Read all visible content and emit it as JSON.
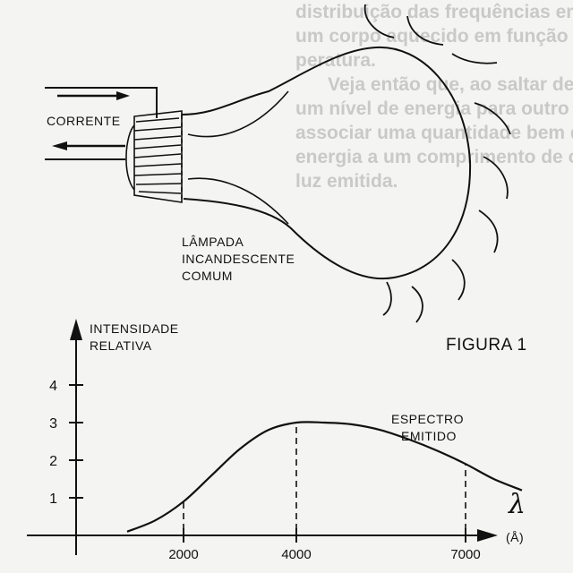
{
  "background_text": [
    "distribuição das frequências emitidas por",
    "um corpo aquecido em função da sua tem-",
    "peratura.",
    "Veja então que, ao saltar de um para",
    "um nível de energia para outro podemos",
    "associar uma quantidade bem definida de",
    "energia a um comprimento de onda para a",
    "luz emitida."
  ],
  "lamp": {
    "current_label": "CORRENTE",
    "lamp_label": [
      "LÂMPADA",
      "INCANDESCENTE",
      "COMUM"
    ]
  },
  "figure_label": "FIGURA 1",
  "chart_data": {
    "type": "line",
    "title": "",
    "ylabel": [
      "INTENSIDADE",
      "RELATIVA"
    ],
    "xlabel_symbol": "λ",
    "xlabel_unit": "(Å)",
    "x_ticks": [
      2000,
      4000,
      7000
    ],
    "y_ticks": [
      1,
      2,
      3,
      4
    ],
    "annotation": [
      "ESPECTRO",
      "EMITIDO"
    ],
    "series": [
      {
        "x": [
          1000,
          1500,
          2000,
          2500,
          3000,
          3500,
          4000,
          4500,
          5000,
          5500,
          6000,
          6500,
          7000,
          7500,
          8000
        ],
        "y": [
          0.1,
          0.4,
          0.9,
          1.6,
          2.3,
          2.8,
          3.0,
          3.0,
          2.95,
          2.8,
          2.55,
          2.25,
          1.9,
          1.5,
          1.2
        ]
      }
    ],
    "dashed_markers_x": [
      2000,
      4000,
      7000
    ]
  }
}
